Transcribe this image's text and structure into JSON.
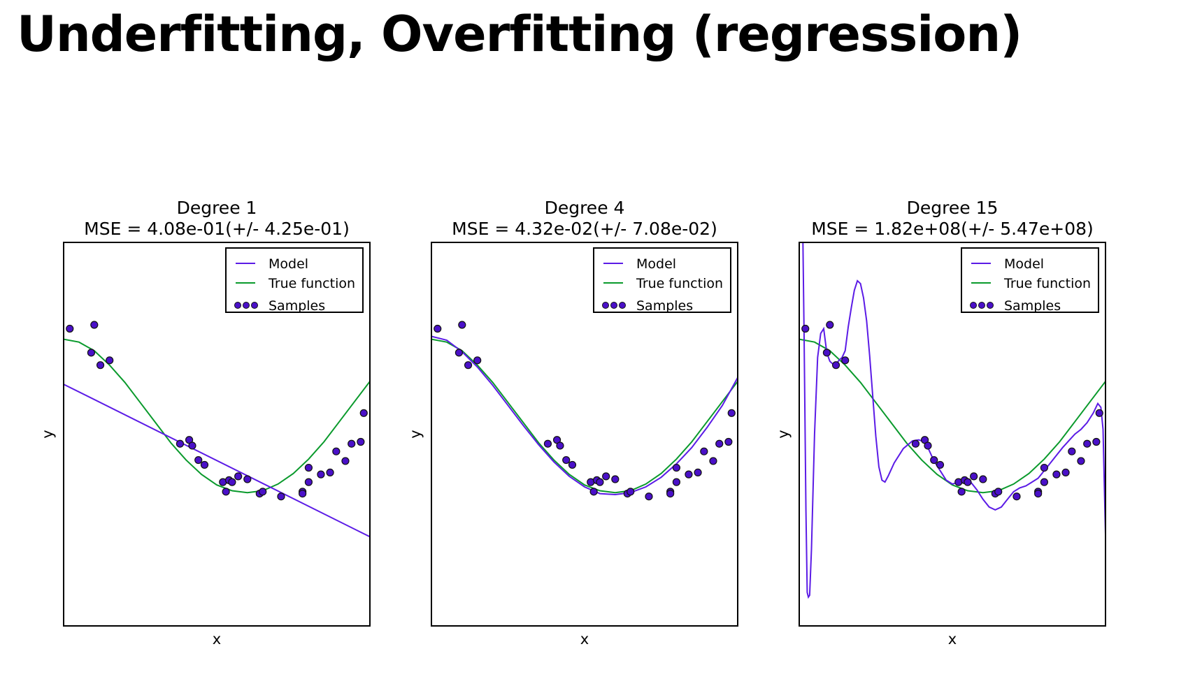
{
  "title": "Underfitting, Overfitting (regression)",
  "legend_labels": {
    "model": "Model",
    "true_function": "True function",
    "samples": "Samples"
  },
  "colors": {
    "model": "#5b1be6",
    "true_function": "#0a9a2c",
    "samples": "#4a10c8",
    "axes": "#000000"
  },
  "true_function_points": [
    [
      0,
      0.99
    ],
    [
      0.05,
      0.96
    ],
    [
      0.1,
      0.87
    ],
    [
      0.15,
      0.72
    ],
    [
      0.2,
      0.54
    ],
    [
      0.25,
      0.33
    ],
    [
      0.3,
      0.12
    ],
    [
      0.35,
      -0.09
    ],
    [
      0.4,
      -0.27
    ],
    [
      0.45,
      -0.42
    ],
    [
      0.5,
      -0.53
    ],
    [
      0.55,
      -0.59
    ],
    [
      0.6,
      -0.61
    ],
    [
      0.65,
      -0.59
    ],
    [
      0.7,
      -0.52
    ],
    [
      0.75,
      -0.41
    ],
    [
      0.8,
      -0.26
    ],
    [
      0.85,
      -0.08
    ],
    [
      0.9,
      0.13
    ],
    [
      0.95,
      0.34
    ],
    [
      1,
      0.55
    ]
  ],
  "samples": [
    [
      0.02,
      1.1
    ],
    [
      0.09,
      0.85
    ],
    [
      0.1,
      1.14
    ],
    [
      0.12,
      0.72
    ],
    [
      0.15,
      0.77
    ],
    [
      0.38,
      -0.1
    ],
    [
      0.41,
      -0.06
    ],
    [
      0.42,
      -0.12
    ],
    [
      0.44,
      -0.27
    ],
    [
      0.46,
      -0.32
    ],
    [
      0.52,
      -0.5
    ],
    [
      0.53,
      -0.6
    ],
    [
      0.54,
      -0.48
    ],
    [
      0.55,
      -0.5
    ],
    [
      0.57,
      -0.44
    ],
    [
      0.6,
      -0.47
    ],
    [
      0.64,
      -0.62
    ],
    [
      0.65,
      -0.6
    ],
    [
      0.71,
      -0.65
    ],
    [
      0.78,
      -0.6
    ],
    [
      0.78,
      -0.62
    ],
    [
      0.8,
      -0.35
    ],
    [
      0.8,
      -0.5
    ],
    [
      0.84,
      -0.42
    ],
    [
      0.87,
      -0.4
    ],
    [
      0.89,
      -0.18
    ],
    [
      0.92,
      -0.28
    ],
    [
      0.94,
      -0.1
    ],
    [
      0.97,
      -0.08
    ],
    [
      0.98,
      0.22
    ]
  ],
  "chart_data": [
    {
      "type": "scatter",
      "title": "Degree 1",
      "subtitle": "MSE = 4.08e-01(+/- 4.25e-01)",
      "xlabel": "x",
      "ylabel": "y",
      "xlim": [
        0,
        1
      ],
      "ylim": [
        -2,
        2
      ],
      "grid": false,
      "legend_position": "top-right",
      "series": [
        {
          "name": "Model",
          "kind": "line",
          "points": [
            [
              0,
              0.52
            ],
            [
              1,
              -1.07
            ]
          ]
        },
        {
          "name": "True function",
          "kind": "line",
          "ref": "true_function_points"
        },
        {
          "name": "Samples",
          "kind": "scatter",
          "ref": "samples"
        }
      ]
    },
    {
      "type": "scatter",
      "title": "Degree 4",
      "subtitle": "MSE = 4.32e-02(+/- 7.08e-02)",
      "xlabel": "x",
      "ylabel": "y",
      "xlim": [
        0,
        1
      ],
      "ylim": [
        -2,
        2
      ],
      "grid": false,
      "legend_position": "top-right",
      "series": [
        {
          "name": "Model",
          "kind": "line",
          "points": [
            [
              0,
              1.02
            ],
            [
              0.05,
              0.98
            ],
            [
              0.1,
              0.86
            ],
            [
              0.15,
              0.7
            ],
            [
              0.2,
              0.51
            ],
            [
              0.25,
              0.3
            ],
            [
              0.3,
              0.09
            ],
            [
              0.35,
              -0.11
            ],
            [
              0.4,
              -0.29
            ],
            [
              0.45,
              -0.44
            ],
            [
              0.5,
              -0.55
            ],
            [
              0.55,
              -0.62
            ],
            [
              0.6,
              -0.63
            ],
            [
              0.65,
              -0.61
            ],
            [
              0.7,
              -0.55
            ],
            [
              0.75,
              -0.45
            ],
            [
              0.8,
              -0.31
            ],
            [
              0.85,
              -0.14
            ],
            [
              0.9,
              0.07
            ],
            [
              0.95,
              0.3
            ],
            [
              1,
              0.59
            ]
          ]
        },
        {
          "name": "True function",
          "kind": "line",
          "ref": "true_function_points"
        },
        {
          "name": "Samples",
          "kind": "scatter",
          "ref": "samples"
        }
      ]
    },
    {
      "type": "scatter",
      "title": "Degree 15",
      "subtitle": "MSE = 1.82e+08(+/- 5.47e+08)",
      "xlabel": "x",
      "ylabel": "y",
      "xlim": [
        0,
        1
      ],
      "ylim": [
        -2,
        2
      ],
      "grid": false,
      "legend_position": "top-right",
      "series": [
        {
          "name": "Model",
          "kind": "line",
          "points": [
            [
              0.012,
              2.0
            ],
            [
              0.016,
              1.0
            ],
            [
              0.022,
              -0.8
            ],
            [
              0.026,
              -1.65
            ],
            [
              0.03,
              -1.7
            ],
            [
              0.034,
              -1.68
            ],
            [
              0.04,
              -1.2
            ],
            [
              0.05,
              0.0
            ],
            [
              0.06,
              0.8
            ],
            [
              0.07,
              1.05
            ],
            [
              0.08,
              1.1
            ],
            [
              0.09,
              0.85
            ],
            [
              0.1,
              0.76
            ],
            [
              0.11,
              0.73
            ],
            [
              0.12,
              0.73
            ],
            [
              0.13,
              0.77
            ],
            [
              0.14,
              0.8
            ],
            [
              0.15,
              0.87
            ],
            [
              0.16,
              1.12
            ],
            [
              0.17,
              1.32
            ],
            [
              0.18,
              1.5
            ],
            [
              0.19,
              1.6
            ],
            [
              0.2,
              1.57
            ],
            [
              0.21,
              1.42
            ],
            [
              0.22,
              1.18
            ],
            [
              0.23,
              0.82
            ],
            [
              0.24,
              0.4
            ],
            [
              0.25,
              -0.02
            ],
            [
              0.26,
              -0.34
            ],
            [
              0.27,
              -0.48
            ],
            [
              0.28,
              -0.5
            ],
            [
              0.29,
              -0.44
            ],
            [
              0.31,
              -0.3
            ],
            [
              0.34,
              -0.15
            ],
            [
              0.37,
              -0.07
            ],
            [
              0.39,
              -0.06
            ],
            [
              0.41,
              -0.08
            ],
            [
              0.42,
              -0.14
            ],
            [
              0.44,
              -0.28
            ],
            [
              0.46,
              -0.38
            ],
            [
              0.48,
              -0.48
            ],
            [
              0.5,
              -0.52
            ],
            [
              0.52,
              -0.5
            ],
            [
              0.54,
              -0.48
            ],
            [
              0.56,
              -0.5
            ],
            [
              0.58,
              -0.58
            ],
            [
              0.6,
              -0.68
            ],
            [
              0.62,
              -0.76
            ],
            [
              0.64,
              -0.79
            ],
            [
              0.66,
              -0.76
            ],
            [
              0.68,
              -0.68
            ],
            [
              0.7,
              -0.6
            ],
            [
              0.72,
              -0.56
            ],
            [
              0.74,
              -0.54
            ],
            [
              0.76,
              -0.5
            ],
            [
              0.78,
              -0.46
            ],
            [
              0.8,
              -0.38
            ],
            [
              0.82,
              -0.3
            ],
            [
              0.84,
              -0.22
            ],
            [
              0.86,
              -0.14
            ],
            [
              0.88,
              -0.07
            ],
            [
              0.9,
              0.0
            ],
            [
              0.92,
              0.05
            ],
            [
              0.94,
              0.12
            ],
            [
              0.96,
              0.22
            ],
            [
              0.975,
              0.32
            ],
            [
              0.985,
              0.28
            ],
            [
              0.992,
              0.05
            ],
            [
              0.996,
              -0.5
            ],
            [
              1,
              -1.05
            ]
          ]
        },
        {
          "name": "True function",
          "kind": "line",
          "ref": "true_function_points"
        },
        {
          "name": "Samples",
          "kind": "scatter",
          "ref": "samples"
        }
      ]
    }
  ]
}
